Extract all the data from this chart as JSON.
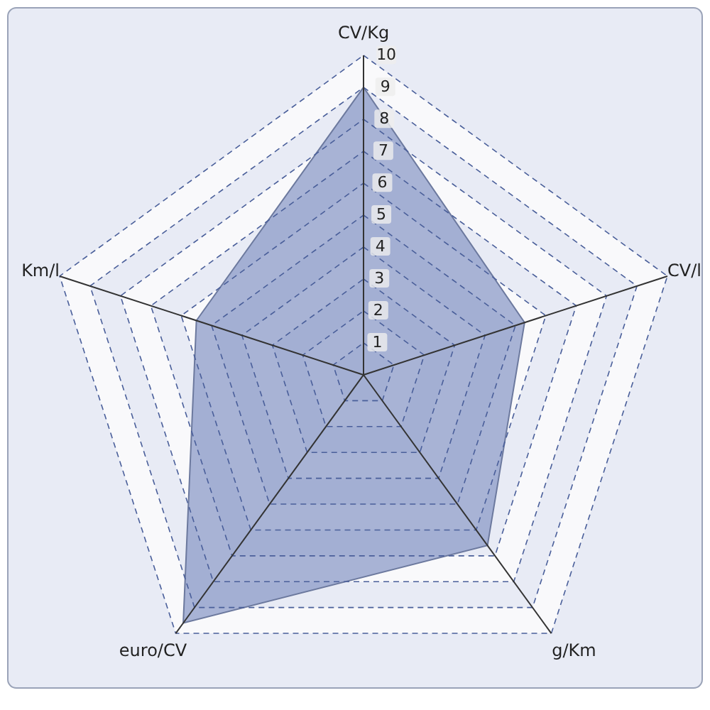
{
  "chart_data": {
    "type": "radar",
    "categories": [
      "CV/Kg",
      "CV/l",
      "g/Km",
      "euro/CV",
      "Km/l"
    ],
    "series": [
      {
        "color": "#8696c4",
        "values": [
          9,
          5.3,
          6.6,
          9.6,
          5.5
        ]
      }
    ],
    "ylim": [
      0,
      10
    ],
    "yticks": [
      1,
      2,
      3,
      4,
      5,
      6,
      7,
      8,
      9,
      10
    ],
    "grid": true
  }
}
